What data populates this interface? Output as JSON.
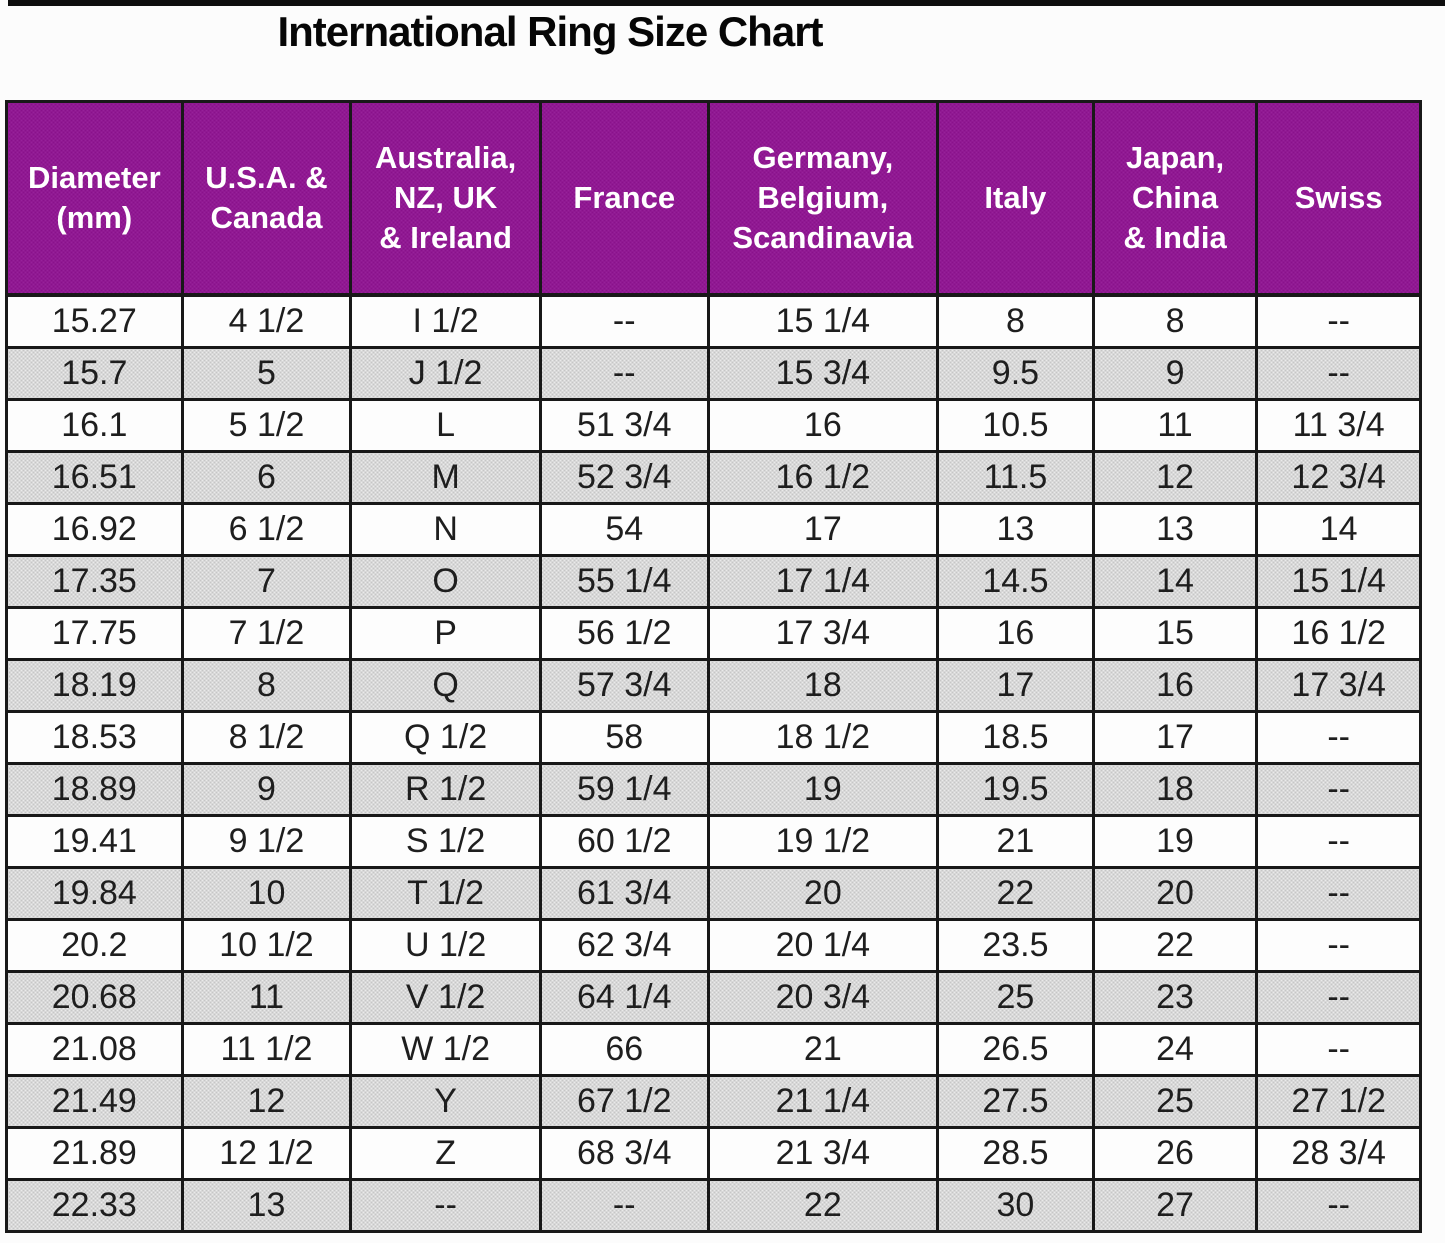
{
  "title": "International Ring Size Chart",
  "colors": {
    "header_bg": "#8E178F",
    "header_text": "#ffffff",
    "row_bg": "#fdfdfd",
    "row_alt_bg": "#cccccc",
    "border": "#181818",
    "title_text": "#060606"
  },
  "chart_data": {
    "type": "table",
    "title": "International Ring Size Chart",
    "columns": [
      "Diameter\n(mm)",
      "U.S.A. &\nCanada",
      "Australia,\nNZ, UK\n& Ireland",
      "France",
      "Germany,\nBelgium,\nScandinavia",
      "Italy",
      "Japan,\nChina\n& India",
      "Swiss"
    ],
    "rows": [
      [
        "15.27",
        "4 1/2",
        "I 1/2",
        "--",
        "15 1/4",
        "8",
        "8",
        "--"
      ],
      [
        "15.7",
        "5",
        "J 1/2",
        "--",
        "15 3/4",
        "9.5",
        "9",
        "--"
      ],
      [
        "16.1",
        "5 1/2",
        "L",
        "51 3/4",
        "16",
        "10.5",
        "11",
        "11 3/4"
      ],
      [
        "16.51",
        "6",
        "M",
        "52 3/4",
        "16 1/2",
        "11.5",
        "12",
        "12 3/4"
      ],
      [
        "16.92",
        "6 1/2",
        "N",
        "54",
        "17",
        "13",
        "13",
        "14"
      ],
      [
        "17.35",
        "7",
        "O",
        "55 1/4",
        "17 1/4",
        "14.5",
        "14",
        "15 1/4"
      ],
      [
        "17.75",
        "7 1/2",
        "P",
        "56 1/2",
        "17 3/4",
        "16",
        "15",
        "16 1/2"
      ],
      [
        "18.19",
        "8",
        "Q",
        "57 3/4",
        "18",
        "17",
        "16",
        "17 3/4"
      ],
      [
        "18.53",
        "8 1/2",
        "Q 1/2",
        "58",
        "18 1/2",
        "18.5",
        "17",
        "--"
      ],
      [
        "18.89",
        "9",
        "R 1/2",
        "59 1/4",
        "19",
        "19.5",
        "18",
        "--"
      ],
      [
        "19.41",
        "9 1/2",
        "S 1/2",
        "60 1/2",
        "19 1/2",
        "21",
        "19",
        "--"
      ],
      [
        "19.84",
        "10",
        "T 1/2",
        "61 3/4",
        "20",
        "22",
        "20",
        "--"
      ],
      [
        "20.2",
        "10 1/2",
        "U 1/2",
        "62 3/4",
        "20 1/4",
        "23.5",
        "22",
        "--"
      ],
      [
        "20.68",
        "11",
        "V 1/2",
        "64 1/4",
        "20 3/4",
        "25",
        "23",
        "--"
      ],
      [
        "21.08",
        "11 1/2",
        "W 1/2",
        "66",
        "21",
        "26.5",
        "24",
        "--"
      ],
      [
        "21.49",
        "12",
        "Y",
        "67 1/2",
        "21 1/4",
        "27.5",
        "25",
        "27 1/2"
      ],
      [
        "21.89",
        "12 1/2",
        "Z",
        "68 3/4",
        "21 3/4",
        "28.5",
        "26",
        "28 3/4"
      ],
      [
        "22.33",
        "13",
        "--",
        "--",
        "22",
        "30",
        "27",
        "--"
      ]
    ]
  }
}
